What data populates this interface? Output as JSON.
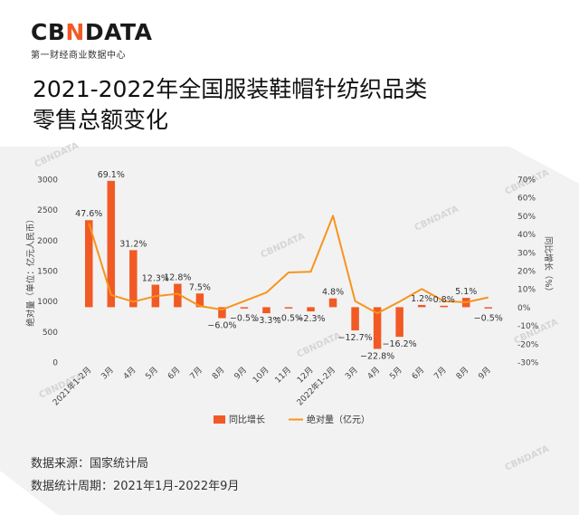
{
  "brand": {
    "name_left": "CB",
    "name_x": "N",
    "name_right": "DATA",
    "tagline": "第一财经商业数据中心"
  },
  "title_lines": [
    "2021-2022年全国服装鞋帽针纺织品类",
    "零售总额变化"
  ],
  "footer": {
    "source": "数据来源：国家统计局",
    "period": "数据统计周期：2021年1月-2022年9月"
  },
  "watermark_text": "CBNDATA",
  "colors": {
    "bar": "#f15a24",
    "line": "#f7941d",
    "accent": "#f15a24"
  },
  "chart_data": {
    "type": "bar+line",
    "categories": [
      "2021年1-2月",
      "3月",
      "4月",
      "5月",
      "6月",
      "7月",
      "8月",
      "9月",
      "10月",
      "11月",
      "12月",
      "2022年1-2月",
      "3月",
      "4月",
      "5月",
      "6月",
      "7月",
      "8月",
      "9月"
    ],
    "series": [
      {
        "name": "同比增长",
        "type": "bar",
        "axis": "right",
        "unit": "%",
        "values": [
          47.6,
          69.1,
          31.2,
          12.3,
          12.8,
          7.5,
          -6.0,
          -0.5,
          -3.3,
          -0.5,
          -2.3,
          4.8,
          -12.7,
          -22.8,
          -16.2,
          1.2,
          0.8,
          5.1,
          -0.5
        ],
        "labels": [
          "47.6%",
          "69.1%",
          "31.2%",
          "12.3%",
          "12.8%",
          "7.5%",
          "−6.0%",
          "−0.5%",
          "−3.3%",
          "−0.5%",
          "−2.3%",
          "4.8%",
          "−12.7%",
          "−22.8%",
          "−16.2%",
          "1.2%",
          "0.8%",
          "5.1%",
          "−0.5%"
        ]
      },
      {
        "name": "绝对量（亿元）",
        "type": "line",
        "axis": "left",
        "values": [
          2280,
          1100,
          990,
          1080,
          1120,
          920,
          860,
          1000,
          1140,
          1470,
          1480,
          2400,
          1000,
          800,
          990,
          1200,
          1000,
          980,
          1060
        ]
      }
    ],
    "left_axis": {
      "label": "绝对量（单位：亿元人民币）",
      "ylim": [
        0,
        3000
      ],
      "ticks": [
        "0",
        "500",
        "1000",
        "1500",
        "2000",
        "2500",
        "3000"
      ]
    },
    "right_axis": {
      "label": "同比增长（%）",
      "ylim": [
        -30,
        70
      ],
      "ticks": [
        "-30%",
        "-20%",
        "-10%",
        "0%",
        "10%",
        "20%",
        "30%",
        "40%",
        "50%",
        "60%",
        "70%"
      ]
    },
    "legend": {
      "position": "bottom",
      "items": [
        "同比增长",
        "绝对量（亿元）"
      ]
    }
  }
}
